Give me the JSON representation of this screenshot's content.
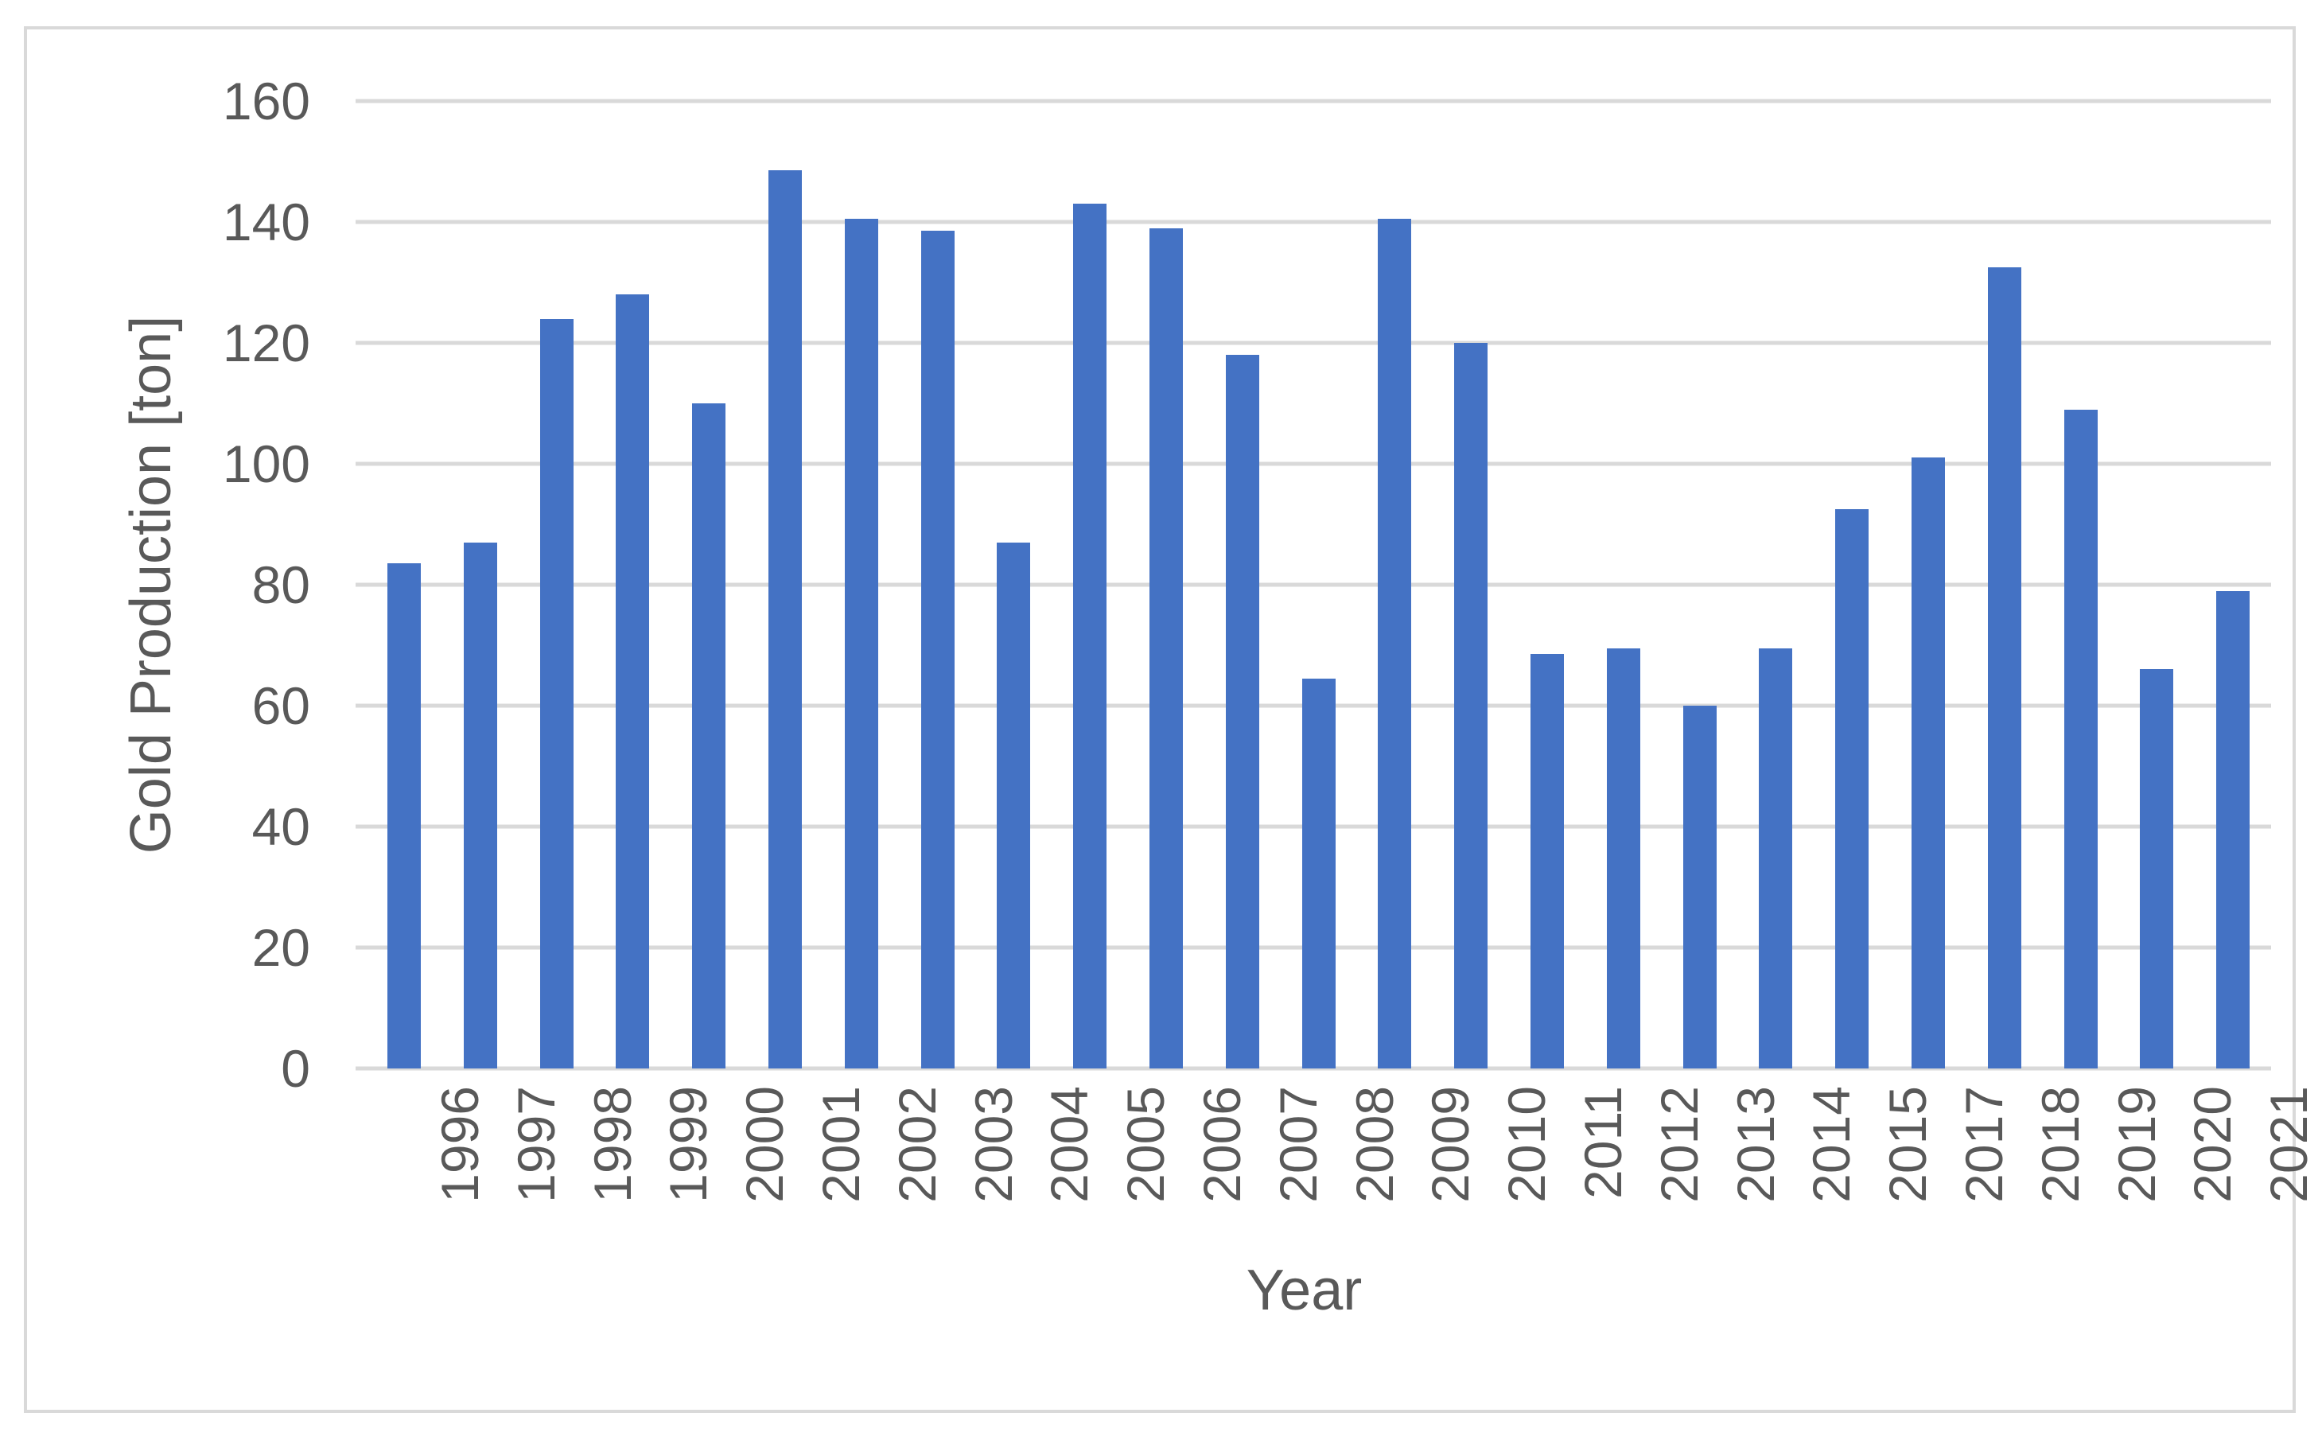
{
  "chart_data": {
    "type": "bar",
    "title": "",
    "xlabel": "Year",
    "ylabel": "Gold Production [ton]",
    "categories": [
      "1996",
      "1997",
      "1998",
      "1999",
      "2000",
      "2001",
      "2002",
      "2003",
      "2004",
      "2005",
      "2006",
      "2007",
      "2008",
      "2009",
      "2010",
      "2011",
      "2012",
      "2013",
      "2014",
      "2015",
      "2017",
      "2018",
      "2019",
      "2020",
      "2021"
    ],
    "values": [
      83.5,
      87,
      124,
      128,
      110,
      148.5,
      140.5,
      138.5,
      87,
      143,
      139,
      118,
      64.5,
      140.5,
      120,
      68.5,
      69.5,
      60,
      69.5,
      92.5,
      101,
      132.5,
      109,
      66,
      79
    ],
    "ylim": [
      0,
      160
    ],
    "yticks": [
      0,
      20,
      40,
      60,
      80,
      100,
      120,
      140,
      160
    ],
    "grid": "horizontal-major",
    "legend": "none",
    "note_missing_category": "2016 absent from axis",
    "colors": {
      "bar": "#4472c4",
      "gridline": "#d9d9d9",
      "axis_line": "#d9d9d9",
      "tick_mark": "#d9d9d9",
      "chart_border": "#d9d9d9",
      "text": "#595959",
      "background": "#ffffff"
    }
  }
}
